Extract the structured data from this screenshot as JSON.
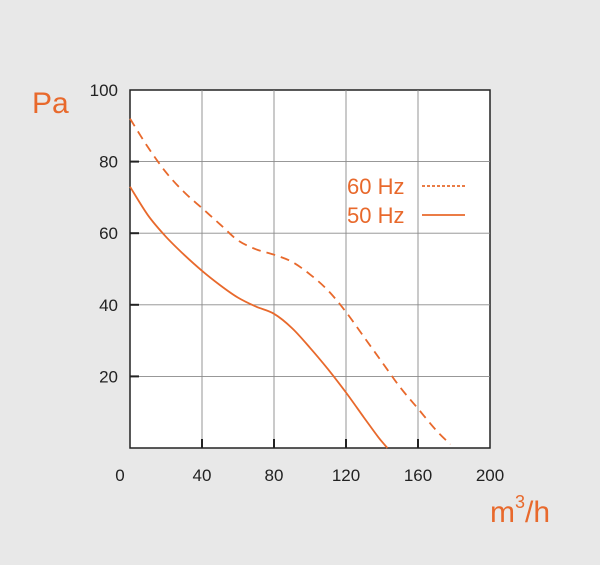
{
  "colors": {
    "series": "#e8692c",
    "axis": "#222222",
    "grid": "#8a8a8a",
    "background": "#e8e8e8",
    "plot": "#ffffff"
  },
  "chart_data": {
    "type": "line",
    "title": "",
    "xlabel_main": "m",
    "xlabel_sup": "3",
    "xlabel_tail": "/h",
    "ylabel": "Pa",
    "xlim": [
      0,
      200
    ],
    "ylim": [
      0,
      100
    ],
    "xticks": [
      0,
      40,
      80,
      120,
      160,
      200
    ],
    "yticks": [
      20,
      40,
      60,
      80,
      100
    ],
    "grid": true,
    "legend_position": "top-right",
    "series": [
      {
        "name": "60 Hz",
        "dash": "dashed",
        "points": [
          [
            0,
            92
          ],
          [
            10,
            84
          ],
          [
            20,
            77
          ],
          [
            30,
            71.5
          ],
          [
            40,
            67
          ],
          [
            50,
            62.5
          ],
          [
            60,
            58
          ],
          [
            70,
            55.5
          ],
          [
            80,
            54
          ],
          [
            90,
            52
          ],
          [
            100,
            48.5
          ],
          [
            110,
            44
          ],
          [
            120,
            38
          ],
          [
            130,
            31
          ],
          [
            140,
            24
          ],
          [
            150,
            17
          ],
          [
            160,
            11
          ],
          [
            170,
            5
          ],
          [
            178,
            1
          ]
        ]
      },
      {
        "name": "50 Hz",
        "dash": "solid",
        "points": [
          [
            0,
            73
          ],
          [
            10,
            65
          ],
          [
            20,
            59
          ],
          [
            30,
            54
          ],
          [
            40,
            49.5
          ],
          [
            50,
            45.5
          ],
          [
            60,
            42
          ],
          [
            70,
            39.5
          ],
          [
            80,
            37.5
          ],
          [
            90,
            33.5
          ],
          [
            100,
            28
          ],
          [
            110,
            22
          ],
          [
            120,
            15.5
          ],
          [
            130,
            8.5
          ],
          [
            138,
            3
          ],
          [
            143,
            0
          ]
        ]
      }
    ]
  }
}
